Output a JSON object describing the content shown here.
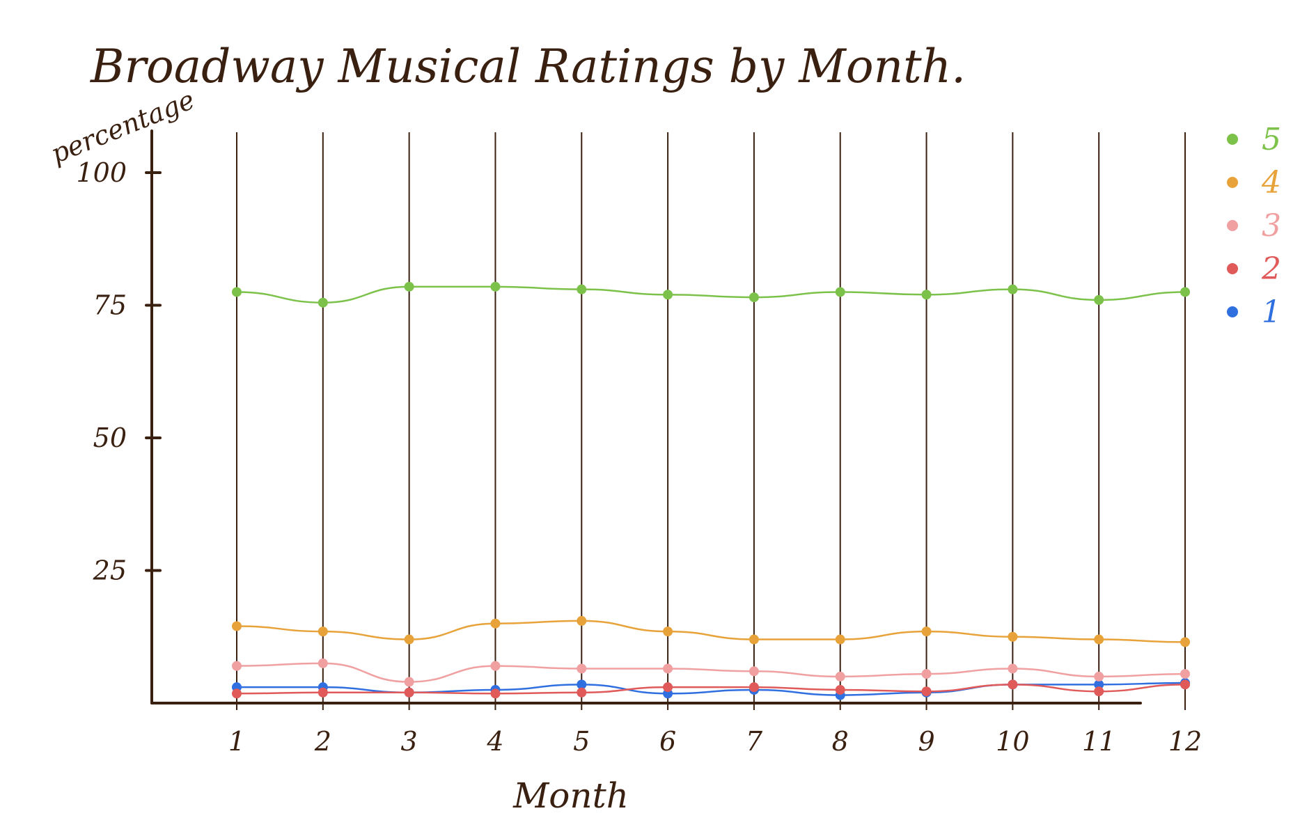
{
  "chart_data": {
    "type": "line",
    "title": "Broadway Musical Ratings by Month.",
    "xlabel": "Month",
    "ylabel": "percentage",
    "categories": [
      "1",
      "2",
      "3",
      "4",
      "5",
      "6",
      "7",
      "8",
      "9",
      "10",
      "11",
      "12"
    ],
    "yticks": [
      25,
      50,
      75,
      100
    ],
    "ylim": [
      0,
      100
    ],
    "grid": "vertical",
    "legend_position": "right",
    "series": [
      {
        "name": "5",
        "color": "#7cc24a",
        "values": [
          77.5,
          75.5,
          78.5,
          78.5,
          78,
          77,
          76.5,
          77.5,
          77,
          78,
          76,
          77.5
        ]
      },
      {
        "name": "4",
        "color": "#e8a23a",
        "values": [
          14.5,
          13.5,
          12,
          15,
          15.5,
          13.5,
          12,
          12,
          13.5,
          12.5,
          12,
          11.5
        ]
      },
      {
        "name": "3",
        "color": "#f0a0a0",
        "values": [
          7,
          7.5,
          4,
          7,
          6.5,
          6.5,
          6,
          5,
          5.5,
          6.5,
          5,
          5.5
        ]
      },
      {
        "name": "2",
        "color": "#e05a5a",
        "values": [
          1.8,
          2,
          2,
          1.8,
          2,
          3,
          3,
          2.5,
          2.2,
          3.5,
          2.2,
          3.5
        ]
      },
      {
        "name": "1",
        "color": "#2f6fe0",
        "values": [
          3,
          3,
          2,
          2.5,
          3.5,
          1.8,
          2.5,
          1.5,
          2,
          3.5,
          3.5,
          3.8
        ]
      }
    ]
  }
}
